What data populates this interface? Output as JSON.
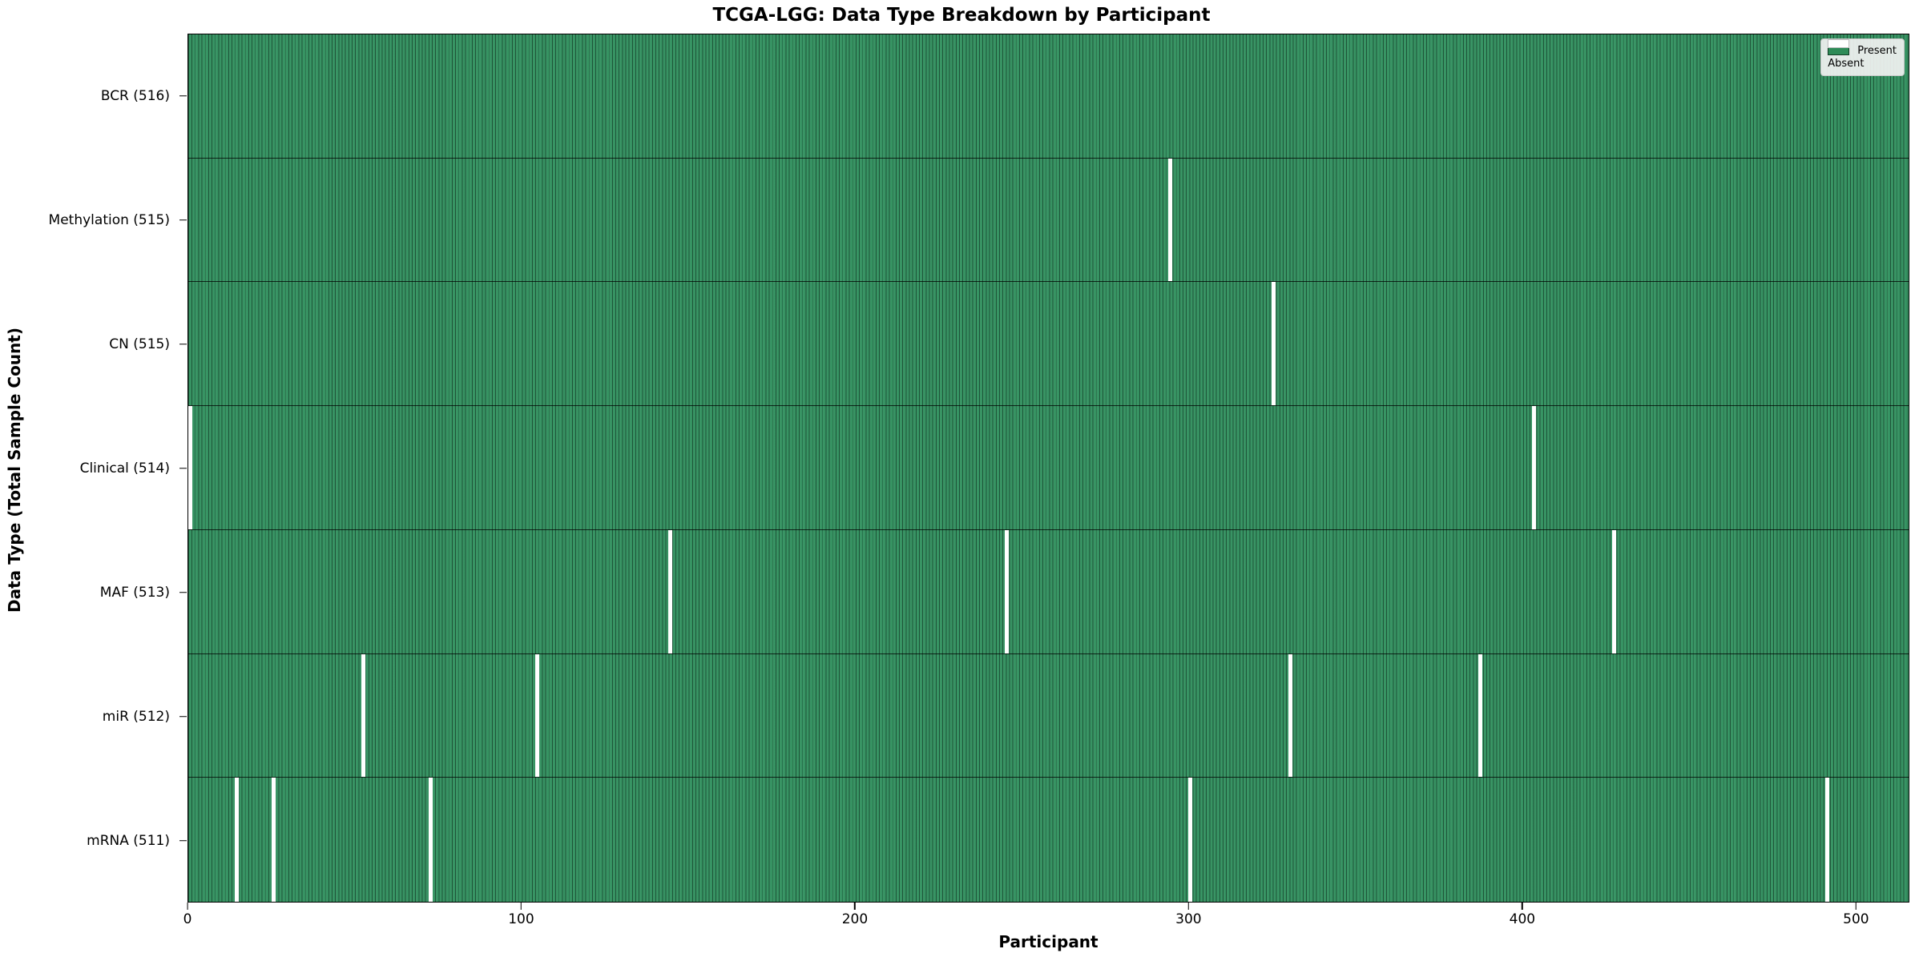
{
  "title": "TCGA-LGG: Data Type Breakdown by Participant",
  "xlabel": "Participant",
  "ylabel": "Data Type (Total Sample Count)",
  "legend": {
    "present_label": "Present",
    "absent_label": "Absent"
  },
  "colors": {
    "present": "#2e8b57",
    "absent": "#ffffff",
    "cell_edge": "rgba(0,0,0,0.42)",
    "legend_bg": "#f2f2f2"
  },
  "chart_data": {
    "type": "heatmap",
    "title": "TCGA-LGG: Data Type Breakdown by Participant",
    "xlabel": "Participant",
    "ylabel": "Data Type (Total Sample Count)",
    "n_participants": 516,
    "xlim": [
      0,
      516
    ],
    "x_ticks": [
      0,
      100,
      200,
      300,
      400,
      500
    ],
    "x_tick_labels": [
      "0",
      "100",
      "200",
      "300",
      "400",
      "500"
    ],
    "grid": false,
    "legend_entries": [
      "Present",
      "Absent"
    ],
    "legend_position": "upper right",
    "rows": [
      {
        "data_type": "BCR",
        "label": "BCR (516)",
        "total": 516,
        "absent_participants": []
      },
      {
        "data_type": "Methylation",
        "label": "Methylation (515)",
        "total": 515,
        "absent_participants": [
          294
        ]
      },
      {
        "data_type": "CN",
        "label": "CN (515)",
        "total": 515,
        "absent_participants": [
          325
        ]
      },
      {
        "data_type": "Clinical",
        "label": "Clinical (514)",
        "total": 514,
        "absent_participants": [
          0,
          403
        ]
      },
      {
        "data_type": "MAF",
        "label": "MAF (513)",
        "total": 513,
        "absent_participants": [
          144,
          245,
          427
        ]
      },
      {
        "data_type": "miR",
        "label": "miR (512)",
        "total": 512,
        "absent_participants": [
          52,
          104,
          330,
          387
        ]
      },
      {
        "data_type": "mRNA",
        "label": "mRNA (511)",
        "total": 511,
        "absent_participants": [
          14,
          25,
          72,
          300,
          491
        ]
      }
    ]
  }
}
